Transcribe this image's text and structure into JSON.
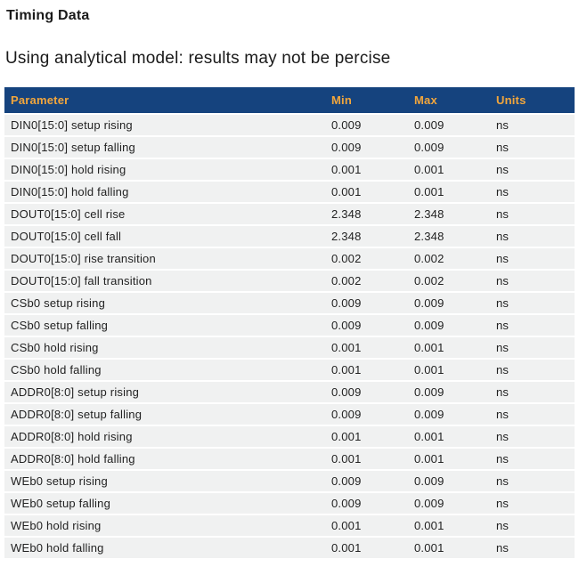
{
  "page": {
    "title": "Timing Data",
    "subtitle": "Using analytical model: results may not be percise"
  },
  "colors": {
    "header_bg": "#15437e",
    "header_text": "#f2a63c",
    "row_bg": "#f0f1f1",
    "row_text": "#222222"
  },
  "table": {
    "columns": [
      "Parameter",
      "Min",
      "Max",
      "Units"
    ],
    "rows": [
      {
        "parameter": "DIN0[15:0] setup rising",
        "min": "0.009",
        "max": "0.009",
        "units": "ns"
      },
      {
        "parameter": "DIN0[15:0] setup falling",
        "min": "0.009",
        "max": "0.009",
        "units": "ns"
      },
      {
        "parameter": "DIN0[15:0] hold rising",
        "min": "0.001",
        "max": "0.001",
        "units": "ns"
      },
      {
        "parameter": "DIN0[15:0] hold falling",
        "min": "0.001",
        "max": "0.001",
        "units": "ns"
      },
      {
        "parameter": "DOUT0[15:0] cell rise",
        "min": "2.348",
        "max": "2.348",
        "units": "ns"
      },
      {
        "parameter": "DOUT0[15:0] cell fall",
        "min": "2.348",
        "max": "2.348",
        "units": "ns"
      },
      {
        "parameter": "DOUT0[15:0] rise transition",
        "min": "0.002",
        "max": "0.002",
        "units": "ns"
      },
      {
        "parameter": "DOUT0[15:0] fall transition",
        "min": "0.002",
        "max": "0.002",
        "units": "ns"
      },
      {
        "parameter": "CSb0 setup rising",
        "min": "0.009",
        "max": "0.009",
        "units": "ns"
      },
      {
        "parameter": "CSb0 setup falling",
        "min": "0.009",
        "max": "0.009",
        "units": "ns"
      },
      {
        "parameter": "CSb0 hold rising",
        "min": "0.001",
        "max": "0.001",
        "units": "ns"
      },
      {
        "parameter": "CSb0 hold falling",
        "min": "0.001",
        "max": "0.001",
        "units": "ns"
      },
      {
        "parameter": "ADDR0[8:0] setup rising",
        "min": "0.009",
        "max": "0.009",
        "units": "ns"
      },
      {
        "parameter": "ADDR0[8:0] setup falling",
        "min": "0.009",
        "max": "0.009",
        "units": "ns"
      },
      {
        "parameter": "ADDR0[8:0] hold rising",
        "min": "0.001",
        "max": "0.001",
        "units": "ns"
      },
      {
        "parameter": "ADDR0[8:0] hold falling",
        "min": "0.001",
        "max": "0.001",
        "units": "ns"
      },
      {
        "parameter": "WEb0 setup rising",
        "min": "0.009",
        "max": "0.009",
        "units": "ns"
      },
      {
        "parameter": "WEb0 setup falling",
        "min": "0.009",
        "max": "0.009",
        "units": "ns"
      },
      {
        "parameter": "WEb0 hold rising",
        "min": "0.001",
        "max": "0.001",
        "units": "ns"
      },
      {
        "parameter": "WEb0 hold falling",
        "min": "0.001",
        "max": "0.001",
        "units": "ns"
      }
    ]
  }
}
